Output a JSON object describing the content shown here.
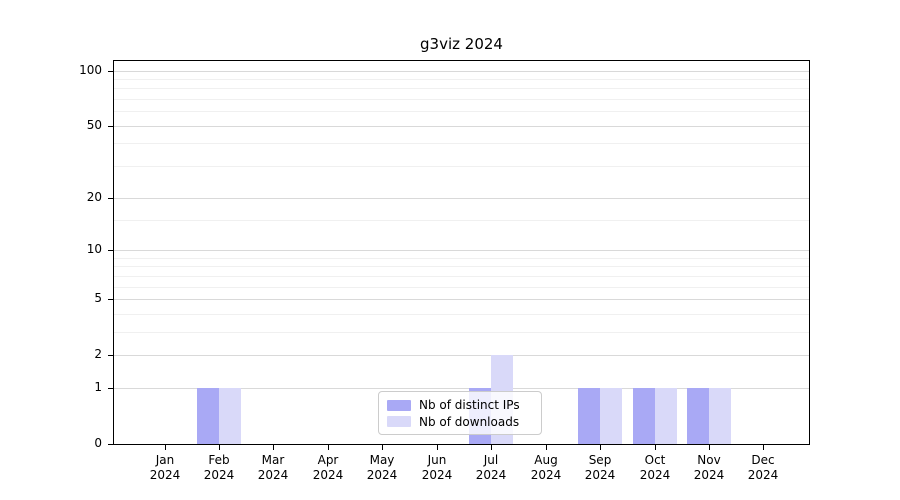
{
  "chart_data": {
    "type": "bar",
    "title": "g3viz 2024",
    "categories": [
      "Jan",
      "Feb",
      "Mar",
      "Apr",
      "May",
      "Jun",
      "Jul",
      "Aug",
      "Sep",
      "Oct",
      "Nov",
      "Dec"
    ],
    "category_year": "2024",
    "series": [
      {
        "name": "Nb of distinct IPs",
        "color": "#a9a9f5",
        "values": [
          0,
          1,
          0,
          0,
          0,
          0,
          1,
          0,
          1,
          1,
          1,
          0
        ]
      },
      {
        "name": "Nb of downloads",
        "color": "#d9d9f9",
        "values": [
          0,
          1,
          0,
          0,
          0,
          0,
          2,
          0,
          1,
          1,
          1,
          0
        ]
      }
    ],
    "y_axis": {
      "scale": "log1p",
      "major_ticks": [
        0,
        1,
        2,
        5,
        10,
        20,
        50,
        100
      ],
      "minor_ticks": [
        3,
        4,
        6,
        7,
        8,
        9,
        15,
        30,
        40,
        60,
        70,
        80,
        90
      ],
      "range_max": 114
    },
    "x_axis": {
      "tick_label_lines": 2
    },
    "legend_position": "lower center",
    "grid": true,
    "colors": {
      "grid_major": "#d9d9d9",
      "grid_minor": "#f0f0f0",
      "axis": "#000000",
      "background": "#ffffff"
    }
  }
}
